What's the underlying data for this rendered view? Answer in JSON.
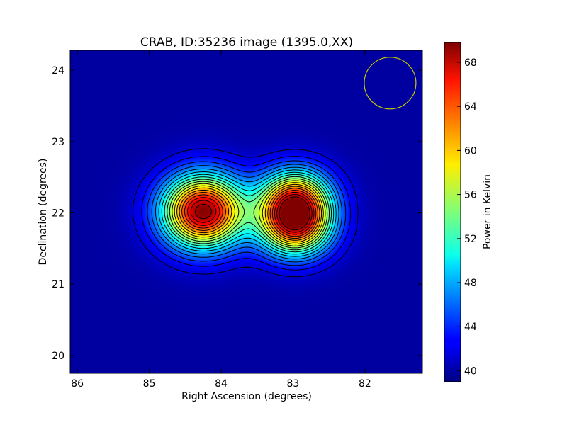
{
  "chart_data": {
    "type": "heatmap",
    "title": "CRAB, ID:35236 image (1395.0,XX)",
    "xlabel": "Right Ascension (degrees)",
    "ylabel": "Declination (degrees)",
    "colorbar_label": "Power in Kelvin",
    "colormap": "jet",
    "grid": false,
    "xlim": [
      86.1,
      81.2
    ],
    "ylim": [
      19.75,
      24.28
    ],
    "x_ticks": [
      86,
      85,
      84,
      83,
      82
    ],
    "y_ticks": [
      20,
      21,
      22,
      23,
      24
    ],
    "colorbar_range": [
      39,
      69.8
    ],
    "colorbar_ticks": [
      40,
      44,
      48,
      52,
      56,
      60,
      64,
      68
    ],
    "background_level": 40,
    "sources": [
      {
        "ra": 84.25,
        "dec": 22.02,
        "peak": 69.6,
        "sigma_ra": 0.4,
        "sigma_dec": 0.36
      },
      {
        "ra": 82.97,
        "dec": 22.2,
        "peak": 60.5,
        "sigma_ra": 0.35,
        "sigma_dec": 0.3
      },
      {
        "ra": 82.97,
        "dec": 21.8,
        "peak": 61.6,
        "sigma_ra": 0.35,
        "sigma_dec": 0.3
      }
    ],
    "contour_levels": [
      41.5,
      43,
      44.5,
      46,
      47.5,
      49,
      50.5,
      52,
      53.5,
      55,
      56.5,
      58,
      59.5,
      61,
      62.5,
      64,
      65.5,
      67,
      68.5
    ],
    "beam_marker": {
      "shape": "circle",
      "center_ra": 81.65,
      "center_dec": 23.82,
      "radius_deg": 0.36,
      "color": "#c8c800"
    }
  }
}
